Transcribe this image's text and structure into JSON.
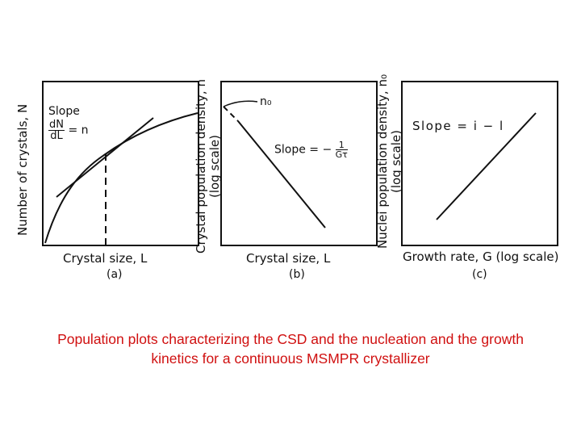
{
  "panel_a": {
    "ylabel": "Number of crystals, N",
    "xlabel": "Crystal size, L",
    "sub": "(a)",
    "slope_word": "Slope",
    "slope_num": "dN",
    "slope_den": "dL",
    "slope_eq": "= n"
  },
  "panel_b": {
    "ylabel_line1": "Crystal population density, n",
    "ylabel_line2": "(log scale)",
    "xlabel": "Crystal size, L",
    "sub": "(b)",
    "n0": "n₀",
    "slope_word": "Slope = −",
    "slope_num": "1",
    "slope_den": "Gτ"
  },
  "panel_c": {
    "ylabel_line1": "Nuclei population density, n₀",
    "ylabel_line2": "(log scale)",
    "xlabel": "Growth rate, G (log scale)",
    "sub": "(c)",
    "slope": "Slope = i − l"
  },
  "caption": "Population plots characterizing the CSD and the nucleation and the growth kinetics for a continuous MSMPR crystallizer"
}
